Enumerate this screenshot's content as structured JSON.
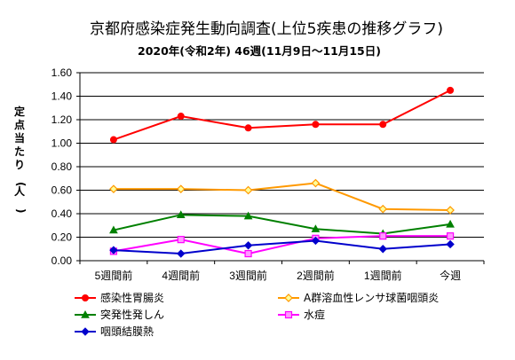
{
  "chart_data": {
    "type": "line",
    "title": "京都府感染症発生動向調査(上位5疾患の推移グラフ)",
    "subtitle": "2020年(令和2年) 46週(11月9日～11月15日)",
    "ylabel": "定点当たり(人)",
    "xlabel": "",
    "categories": [
      "5週間前",
      "4週間前",
      "3週間前",
      "2週間前",
      "1週間前",
      "今週"
    ],
    "ylim": [
      0,
      1.6
    ],
    "yticks": [
      "0.00",
      "0.20",
      "0.40",
      "0.60",
      "0.80",
      "1.00",
      "1.20",
      "1.40",
      "1.60"
    ],
    "grid": "horizontal",
    "legend_position": "bottom",
    "series": [
      {
        "name": "感染性胃腸炎",
        "color": "#ff0000",
        "marker": "circle",
        "values": [
          1.03,
          1.23,
          1.13,
          1.16,
          1.16,
          1.45
        ]
      },
      {
        "name": "A群溶血性レンサ球菌咽頭炎",
        "color": "#ff9900",
        "marker": "diamond-open",
        "values": [
          0.61,
          0.61,
          0.6,
          0.66,
          0.44,
          0.43
        ]
      },
      {
        "name": "突発性発しん",
        "color": "#008000",
        "marker": "triangle",
        "values": [
          0.26,
          0.39,
          0.38,
          0.27,
          0.23,
          0.31
        ]
      },
      {
        "name": "水痘",
        "color": "#ff00ff",
        "marker": "square-open",
        "values": [
          0.08,
          0.18,
          0.06,
          0.19,
          0.21,
          0.21
        ]
      },
      {
        "name": "咽頭結膜熱",
        "color": "#0000cc",
        "marker": "diamond",
        "values": [
          0.09,
          0.06,
          0.13,
          0.17,
          0.1,
          0.14
        ]
      }
    ]
  }
}
